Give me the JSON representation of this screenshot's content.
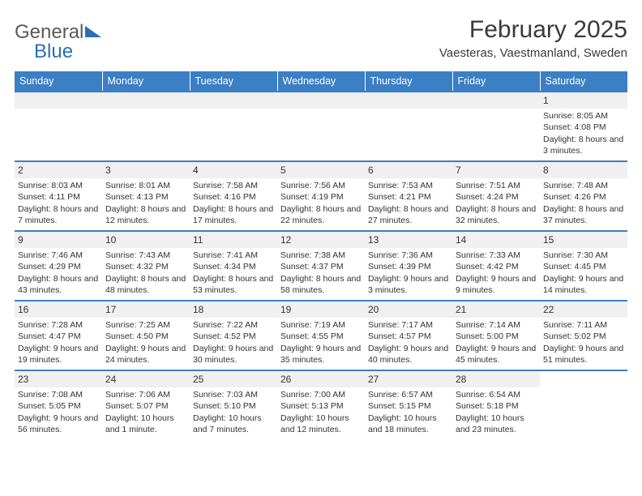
{
  "brand": {
    "part1": "General",
    "part2": "Blue"
  },
  "title": "February 2025",
  "location": "Vaesteras, Vaestmanland, Sweden",
  "colors": {
    "header_bg": "#3b7fc4",
    "header_text": "#ffffff",
    "band_bg": "#f0f0f0",
    "rule": "#3b7fc4",
    "text": "#333333",
    "brand_gray": "#5a5a5a",
    "brand_blue": "#2a6fb5"
  },
  "dow": [
    "Sunday",
    "Monday",
    "Tuesday",
    "Wednesday",
    "Thursday",
    "Friday",
    "Saturday"
  ],
  "weeks": [
    [
      null,
      null,
      null,
      null,
      null,
      null,
      {
        "d": "1",
        "sr": "Sunrise: 8:05 AM",
        "ss": "Sunset: 4:08 PM",
        "dl": "Daylight: 8 hours and 3 minutes."
      }
    ],
    [
      {
        "d": "2",
        "sr": "Sunrise: 8:03 AM",
        "ss": "Sunset: 4:11 PM",
        "dl": "Daylight: 8 hours and 7 minutes."
      },
      {
        "d": "3",
        "sr": "Sunrise: 8:01 AM",
        "ss": "Sunset: 4:13 PM",
        "dl": "Daylight: 8 hours and 12 minutes."
      },
      {
        "d": "4",
        "sr": "Sunrise: 7:58 AM",
        "ss": "Sunset: 4:16 PM",
        "dl": "Daylight: 8 hours and 17 minutes."
      },
      {
        "d": "5",
        "sr": "Sunrise: 7:56 AM",
        "ss": "Sunset: 4:19 PM",
        "dl": "Daylight: 8 hours and 22 minutes."
      },
      {
        "d": "6",
        "sr": "Sunrise: 7:53 AM",
        "ss": "Sunset: 4:21 PM",
        "dl": "Daylight: 8 hours and 27 minutes."
      },
      {
        "d": "7",
        "sr": "Sunrise: 7:51 AM",
        "ss": "Sunset: 4:24 PM",
        "dl": "Daylight: 8 hours and 32 minutes."
      },
      {
        "d": "8",
        "sr": "Sunrise: 7:48 AM",
        "ss": "Sunset: 4:26 PM",
        "dl": "Daylight: 8 hours and 37 minutes."
      }
    ],
    [
      {
        "d": "9",
        "sr": "Sunrise: 7:46 AM",
        "ss": "Sunset: 4:29 PM",
        "dl": "Daylight: 8 hours and 43 minutes."
      },
      {
        "d": "10",
        "sr": "Sunrise: 7:43 AM",
        "ss": "Sunset: 4:32 PM",
        "dl": "Daylight: 8 hours and 48 minutes."
      },
      {
        "d": "11",
        "sr": "Sunrise: 7:41 AM",
        "ss": "Sunset: 4:34 PM",
        "dl": "Daylight: 8 hours and 53 minutes."
      },
      {
        "d": "12",
        "sr": "Sunrise: 7:38 AM",
        "ss": "Sunset: 4:37 PM",
        "dl": "Daylight: 8 hours and 58 minutes."
      },
      {
        "d": "13",
        "sr": "Sunrise: 7:36 AM",
        "ss": "Sunset: 4:39 PM",
        "dl": "Daylight: 9 hours and 3 minutes."
      },
      {
        "d": "14",
        "sr": "Sunrise: 7:33 AM",
        "ss": "Sunset: 4:42 PM",
        "dl": "Daylight: 9 hours and 9 minutes."
      },
      {
        "d": "15",
        "sr": "Sunrise: 7:30 AM",
        "ss": "Sunset: 4:45 PM",
        "dl": "Daylight: 9 hours and 14 minutes."
      }
    ],
    [
      {
        "d": "16",
        "sr": "Sunrise: 7:28 AM",
        "ss": "Sunset: 4:47 PM",
        "dl": "Daylight: 9 hours and 19 minutes."
      },
      {
        "d": "17",
        "sr": "Sunrise: 7:25 AM",
        "ss": "Sunset: 4:50 PM",
        "dl": "Daylight: 9 hours and 24 minutes."
      },
      {
        "d": "18",
        "sr": "Sunrise: 7:22 AM",
        "ss": "Sunset: 4:52 PM",
        "dl": "Daylight: 9 hours and 30 minutes."
      },
      {
        "d": "19",
        "sr": "Sunrise: 7:19 AM",
        "ss": "Sunset: 4:55 PM",
        "dl": "Daylight: 9 hours and 35 minutes."
      },
      {
        "d": "20",
        "sr": "Sunrise: 7:17 AM",
        "ss": "Sunset: 4:57 PM",
        "dl": "Daylight: 9 hours and 40 minutes."
      },
      {
        "d": "21",
        "sr": "Sunrise: 7:14 AM",
        "ss": "Sunset: 5:00 PM",
        "dl": "Daylight: 9 hours and 45 minutes."
      },
      {
        "d": "22",
        "sr": "Sunrise: 7:11 AM",
        "ss": "Sunset: 5:02 PM",
        "dl": "Daylight: 9 hours and 51 minutes."
      }
    ],
    [
      {
        "d": "23",
        "sr": "Sunrise: 7:08 AM",
        "ss": "Sunset: 5:05 PM",
        "dl": "Daylight: 9 hours and 56 minutes."
      },
      {
        "d": "24",
        "sr": "Sunrise: 7:06 AM",
        "ss": "Sunset: 5:07 PM",
        "dl": "Daylight: 10 hours and 1 minute."
      },
      {
        "d": "25",
        "sr": "Sunrise: 7:03 AM",
        "ss": "Sunset: 5:10 PM",
        "dl": "Daylight: 10 hours and 7 minutes."
      },
      {
        "d": "26",
        "sr": "Sunrise: 7:00 AM",
        "ss": "Sunset: 5:13 PM",
        "dl": "Daylight: 10 hours and 12 minutes."
      },
      {
        "d": "27",
        "sr": "Sunrise: 6:57 AM",
        "ss": "Sunset: 5:15 PM",
        "dl": "Daylight: 10 hours and 18 minutes."
      },
      {
        "d": "28",
        "sr": "Sunrise: 6:54 AM",
        "ss": "Sunset: 5:18 PM",
        "dl": "Daylight: 10 hours and 23 minutes."
      },
      null
    ]
  ]
}
